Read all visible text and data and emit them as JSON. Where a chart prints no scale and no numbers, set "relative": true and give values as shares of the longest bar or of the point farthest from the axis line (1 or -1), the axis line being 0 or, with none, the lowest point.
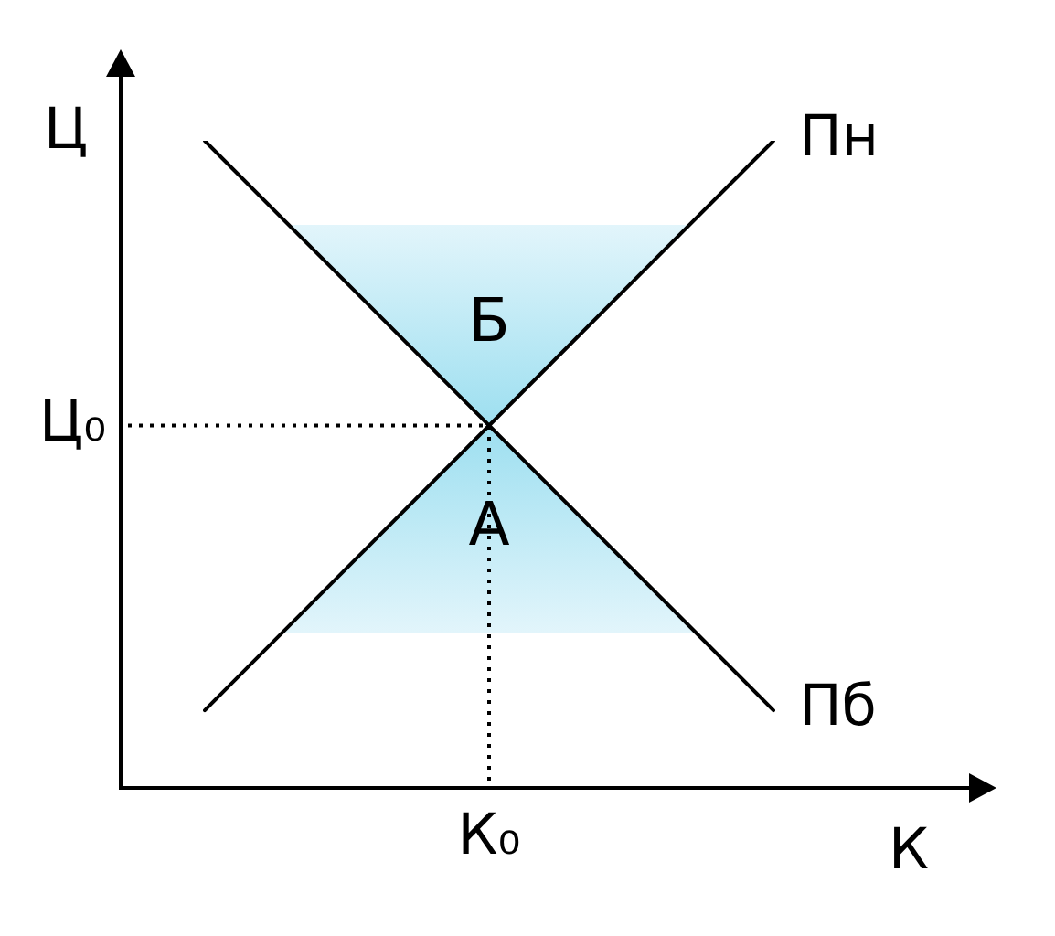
{
  "chart_data": {
    "type": "line",
    "relative": true,
    "xlabel": "К",
    "ylabel": "Ц",
    "categories": [
      null,
      null,
      null
    ],
    "series": [
      {
        "name": "Пн",
        "color": "#000000",
        "values": [
          0.12,
          0.56,
          1
        ]
      },
      {
        "name": "Пб",
        "color": "#000000",
        "values": [
          1,
          0.56,
          0.12
        ]
      }
    ],
    "ref_lines": [
      {
        "axis": "y",
        "value": 0.56,
        "label": "Ц₀",
        "line_style": "dotted",
        "color": "#000000"
      },
      {
        "axis": "x",
        "value": "К₀",
        "line_style": "dotted",
        "color": "#000000"
      }
    ],
    "bands": [
      {
        "axis": "y",
        "from": 0.56,
        "to": 0.87,
        "label": "Б",
        "color": "#9ddff0"
      },
      {
        "axis": "y",
        "from": 0.56,
        "to": 0.24,
        "label": "А",
        "color": "#9ddff0"
      }
    ],
    "legend": false
  }
}
